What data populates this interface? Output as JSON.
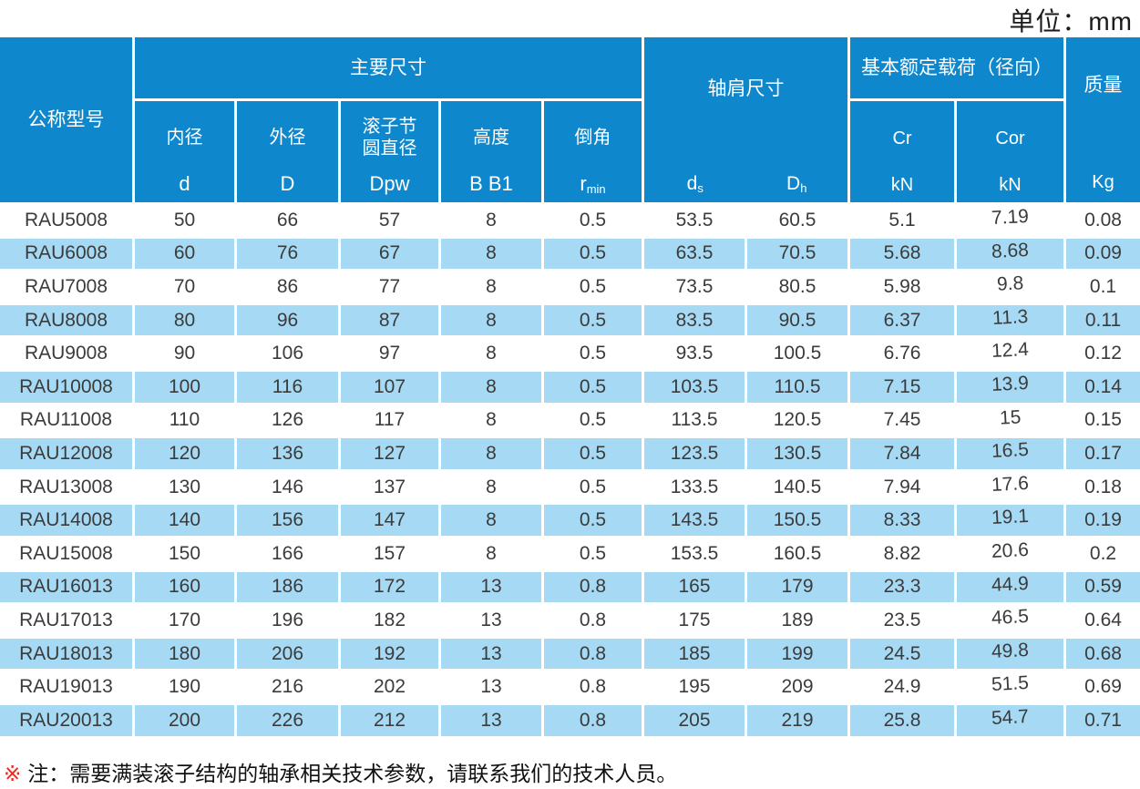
{
  "page": {
    "unit_label": "单位：mm"
  },
  "table": {
    "header": {
      "model_col": "公称型号",
      "main_group": "主要尺寸",
      "sub_inner_label": "内径",
      "sub_inner_symbol": "d",
      "sub_outer_label": "外径",
      "sub_outer_symbol": "D",
      "sub_pitch_label_line1": "滚子节",
      "sub_pitch_label_line2": "圆直径",
      "sub_pitch_symbol": "Dpw",
      "sub_height_label": "高度",
      "sub_height_symbol": "B B1",
      "sub_chamfer_label": "倒角",
      "sub_chamfer_symbol": "r",
      "sub_chamfer_symbol_sub": "min",
      "shoulder_group": "轴肩尺寸",
      "shoulder_ds_main": "d",
      "shoulder_ds_sub": "s",
      "shoulder_dh_main": "D",
      "shoulder_dh_sub": "h",
      "load_group": "基本额定载荷（径向）",
      "load_cr_symbol": "Cr",
      "load_cr_unit": "kN",
      "load_cor_symbol": "Cor",
      "load_cor_unit": "kN",
      "mass_col": "质量",
      "mass_unit": "Kg"
    },
    "columns": [
      "公称型号",
      "内径 d",
      "外径 D",
      "滚子节圆直径 Dpw",
      "高度 B B1",
      "倒角 r min",
      "轴肩尺寸 ds",
      "轴肩尺寸 Dh",
      "Cr kN",
      "Cor kN",
      "质量 Kg"
    ],
    "rows": [
      [
        "RAU5008",
        50,
        66,
        57,
        8,
        0.5,
        53.5,
        60.5,
        5.1,
        7.19,
        0.08
      ],
      [
        "RAU6008",
        60,
        76,
        67,
        8,
        0.5,
        63.5,
        70.5,
        5.68,
        8.68,
        0.09
      ],
      [
        "RAU7008",
        70,
        86,
        77,
        8,
        0.5,
        73.5,
        80.5,
        5.98,
        9.8,
        0.1
      ],
      [
        "RAU8008",
        80,
        96,
        87,
        8,
        0.5,
        83.5,
        90.5,
        6.37,
        11.3,
        0.11
      ],
      [
        "RAU9008",
        90,
        106,
        97,
        8,
        0.5,
        93.5,
        100.5,
        6.76,
        12.4,
        0.12
      ],
      [
        "RAU10008",
        100,
        116,
        107,
        8,
        0.5,
        103.5,
        110.5,
        7.15,
        13.9,
        0.14
      ],
      [
        "RAU11008",
        110,
        126,
        117,
        8,
        0.5,
        113.5,
        120.5,
        7.45,
        15,
        0.15
      ],
      [
        "RAU12008",
        120,
        136,
        127,
        8,
        0.5,
        123.5,
        130.5,
        7.84,
        16.5,
        0.17
      ],
      [
        "RAU13008",
        130,
        146,
        137,
        8,
        0.5,
        133.5,
        140.5,
        7.94,
        17.6,
        0.18
      ],
      [
        "RAU14008",
        140,
        156,
        147,
        8,
        0.5,
        143.5,
        150.5,
        8.33,
        19.1,
        0.19
      ],
      [
        "RAU15008",
        150,
        166,
        157,
        8,
        0.5,
        153.5,
        160.5,
        8.82,
        20.6,
        0.2
      ],
      [
        "RAU16013",
        160,
        186,
        172,
        13,
        0.8,
        165,
        179,
        23.3,
        44.9,
        0.59
      ],
      [
        "RAU17013",
        170,
        196,
        182,
        13,
        0.8,
        175,
        189,
        23.5,
        46.5,
        0.64
      ],
      [
        "RAU18013",
        180,
        206,
        192,
        13,
        0.8,
        185,
        199,
        24.5,
        49.8,
        0.68
      ],
      [
        "RAU19013",
        190,
        216,
        202,
        13,
        0.8,
        195,
        209,
        24.9,
        51.5,
        0.69
      ],
      [
        "RAU20013",
        200,
        226,
        212,
        13,
        0.8,
        205,
        219,
        25.8,
        54.7,
        0.71
      ]
    ]
  },
  "note": {
    "marker": "※",
    "text": "注：需要满装滚子结构的轴承相关技术参数，请联系我们的技术人员。"
  },
  "colors": {
    "header_blue": "#0e87cd",
    "row_blue": "#a6d9f3",
    "body_text": "#3b3b3b",
    "note_marker_red": "#e8281e"
  }
}
